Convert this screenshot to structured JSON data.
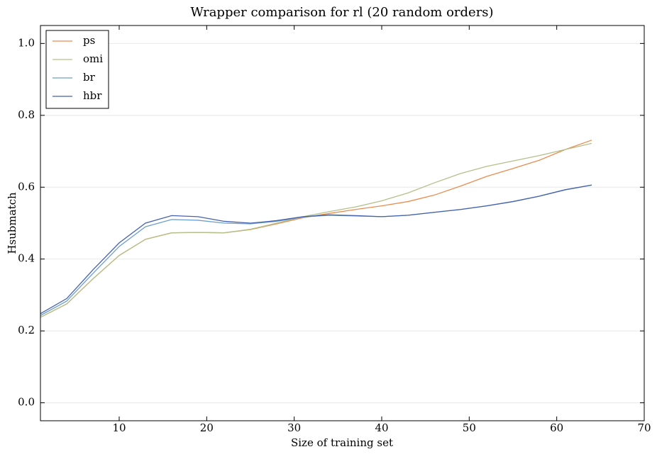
{
  "chart_data": {
    "type": "line",
    "title": "Wrapper comparison for rl (20 random orders)",
    "x_label": "Size of training set",
    "y_label": "Hsubmatch",
    "x": [
      1,
      4,
      7,
      10,
      13,
      16,
      19,
      22,
      25,
      28,
      31,
      34,
      37,
      40,
      43,
      46,
      49,
      52,
      55,
      58,
      61,
      64
    ],
    "series": [
      {
        "name": "ps",
        "color": "#ea8c4e",
        "values": [
          0.238,
          0.275,
          0.345,
          0.41,
          0.455,
          0.473,
          0.474,
          0.473,
          0.482,
          0.498,
          0.515,
          0.527,
          0.538,
          0.548,
          0.56,
          0.578,
          0.603,
          0.63,
          0.652,
          0.675,
          0.705,
          0.731
        ]
      },
      {
        "name": "omi",
        "color": "#b3c08a",
        "values": [
          0.238,
          0.275,
          0.345,
          0.41,
          0.455,
          0.473,
          0.474,
          0.473,
          0.483,
          0.5,
          0.518,
          0.532,
          0.545,
          0.562,
          0.584,
          0.612,
          0.638,
          0.658,
          0.673,
          0.688,
          0.705,
          0.722
        ]
      },
      {
        "name": "br",
        "color": "#6c9fcf",
        "values": [
          0.243,
          0.283,
          0.36,
          0.435,
          0.49,
          0.51,
          0.508,
          0.5,
          0.498,
          0.505,
          0.517,
          0.522,
          0.52,
          0.518,
          0.522,
          0.53,
          0.538,
          0.548,
          0.56,
          0.575,
          0.593,
          0.606
        ]
      },
      {
        "name": "hbr",
        "color": "#4562ae",
        "values": [
          0.248,
          0.29,
          0.37,
          0.445,
          0.5,
          0.521,
          0.518,
          0.505,
          0.5,
          0.507,
          0.518,
          0.523,
          0.521,
          0.518,
          0.522,
          0.53,
          0.538,
          0.548,
          0.56,
          0.575,
          0.593,
          0.606
        ]
      }
    ],
    "xlim": [
      1,
      70
    ],
    "ylim": [
      -0.05,
      1.05
    ],
    "xticks": [
      10,
      20,
      30,
      40,
      50,
      60,
      70
    ],
    "yticks": [
      {
        "value": 0,
        "label": "0.0"
      },
      0.2,
      0.4,
      0.6,
      0.8,
      {
        "value": 1,
        "label": "1.0"
      }
    ],
    "grid": true,
    "legend": "upper left"
  }
}
